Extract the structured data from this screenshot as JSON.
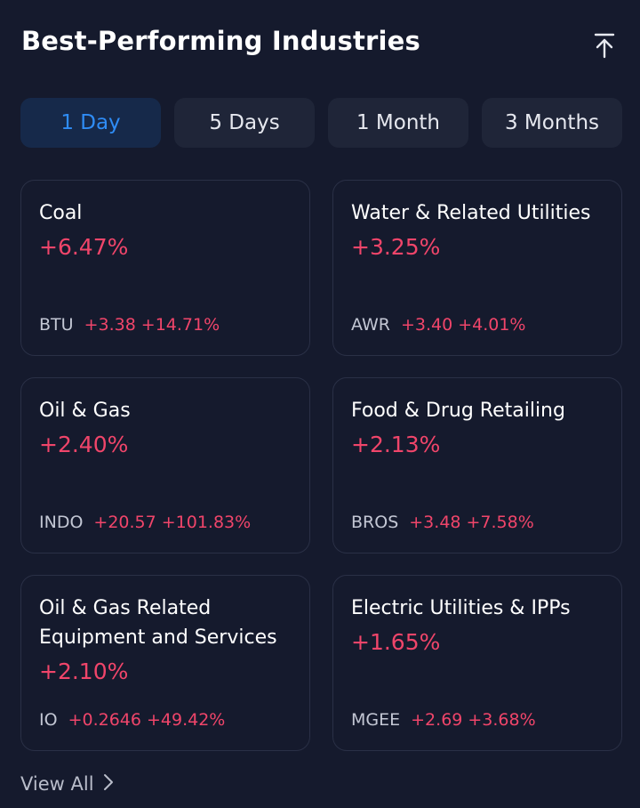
{
  "header": {
    "title": "Best-Performing Industries",
    "icon": "scroll-top-icon"
  },
  "tabs": [
    {
      "label": "1 Day",
      "active": true
    },
    {
      "label": "5 Days",
      "active": false
    },
    {
      "label": "1 Month",
      "active": false
    },
    {
      "label": "3 Months",
      "active": false
    }
  ],
  "industries": [
    {
      "name": "Coal",
      "change_pct": "+6.47%",
      "ticker": "BTU",
      "ticker_change": "+3.38",
      "ticker_change_pct": "+14.71%"
    },
    {
      "name": "Water & Related Utilities",
      "change_pct": "+3.25%",
      "ticker": "AWR",
      "ticker_change": "+3.40",
      "ticker_change_pct": "+4.01%"
    },
    {
      "name": "Oil & Gas",
      "change_pct": "+2.40%",
      "ticker": "INDO",
      "ticker_change": "+20.57",
      "ticker_change_pct": "+101.83%"
    },
    {
      "name": "Food & Drug Retailing",
      "change_pct": "+2.13%",
      "ticker": "BROS",
      "ticker_change": "+3.48",
      "ticker_change_pct": "+7.58%"
    },
    {
      "name": "Oil & Gas Related Equipment and Services",
      "change_pct": "+2.10%",
      "ticker": "IO",
      "ticker_change": "+0.2646",
      "ticker_change_pct": "+49.42%"
    },
    {
      "name": "Electric Utilities & IPPs",
      "change_pct": "+1.65%",
      "ticker": "MGEE",
      "ticker_change": "+2.69",
      "ticker_change_pct": "+3.68%"
    }
  ],
  "footer": {
    "view_all_label": "View All",
    "icon": "chevron-right-icon"
  },
  "colors": {
    "background": "#151a2d",
    "positive": "#f0456a",
    "active_tab_text": "#2f8cf5"
  }
}
